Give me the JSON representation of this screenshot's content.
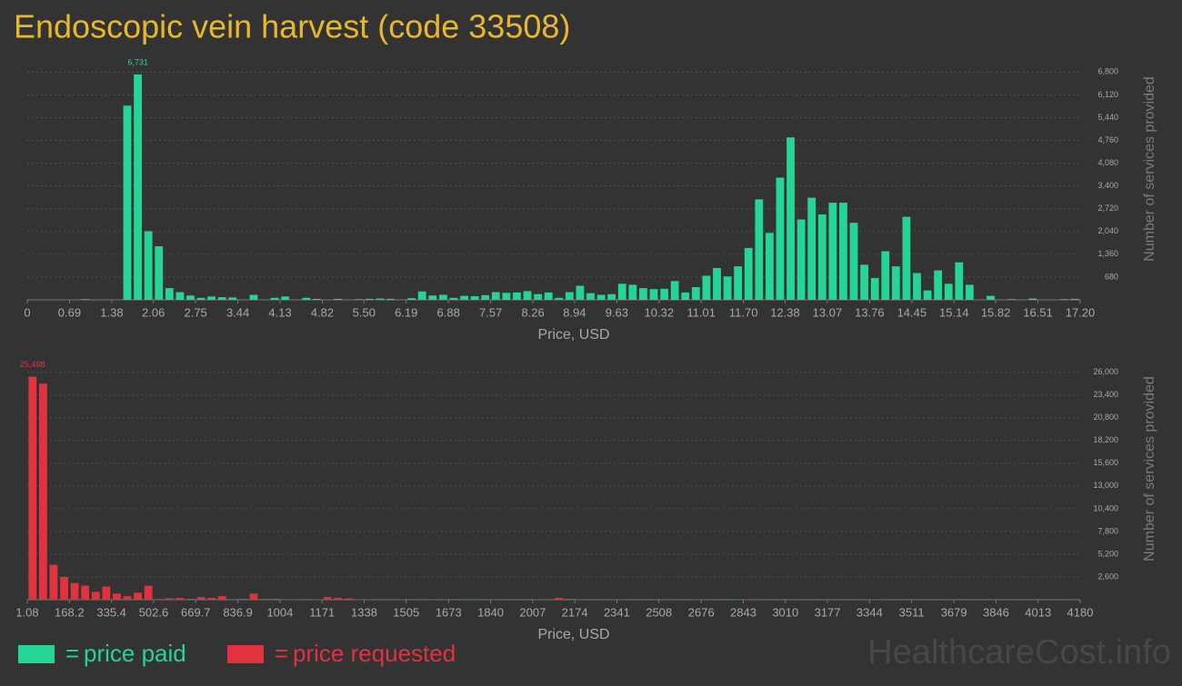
{
  "title": "Endoscopic vein harvest (code 33508)",
  "watermark": "HealthcareCost.info",
  "chart_data": [
    {
      "type": "histogram",
      "name": "price paid",
      "color": "#24d596",
      "xlabel": "Price, USD",
      "ylabel": "Number of services provided",
      "grid": true,
      "bins": [
        0,
        0.172,
        0.344,
        0.516,
        0.688,
        0.86,
        1.032,
        1.204,
        1.376,
        1.548,
        1.72,
        1.892,
        2.064,
        2.236,
        2.408,
        2.58,
        2.752,
        2.924,
        3.096,
        3.268,
        3.44,
        3.612,
        3.784,
        3.956,
        4.128,
        4.3,
        4.472,
        4.644,
        4.816,
        4.988,
        5.16,
        5.332,
        5.504,
        5.676,
        5.848,
        6.02,
        6.192,
        6.364,
        6.536,
        6.708,
        6.88,
        7.052,
        7.224,
        7.396,
        7.568,
        7.74,
        7.912,
        8.084,
        8.256,
        8.428,
        8.6,
        8.772,
        8.944,
        9.116,
        9.288,
        9.46,
        9.632,
        9.804,
        9.976,
        10.148,
        10.32,
        10.492,
        10.664,
        10.836,
        11.008,
        11.18,
        11.352,
        11.524,
        11.696,
        11.868,
        12.04,
        12.212,
        12.384,
        12.556,
        12.728,
        12.9,
        13.072,
        13.244,
        13.416,
        13.588,
        13.76,
        13.932,
        14.104,
        14.276,
        14.448,
        14.62,
        14.792,
        14.964,
        15.136,
        15.308,
        15.48,
        15.652,
        15.824,
        15.996,
        16.168,
        16.34,
        16.512,
        16.684,
        16.856,
        17.028,
        17.2
      ],
      "values": [
        0,
        0,
        0,
        0,
        0,
        20,
        0,
        0,
        0,
        5800,
        6731,
        2050,
        1600,
        350,
        230,
        130,
        60,
        100,
        80,
        70,
        0,
        150,
        0,
        60,
        100,
        0,
        60,
        30,
        0,
        30,
        0,
        20,
        30,
        40,
        30,
        0,
        50,
        250,
        130,
        150,
        60,
        120,
        110,
        140,
        230,
        210,
        220,
        260,
        170,
        220,
        60,
        230,
        420,
        200,
        150,
        170,
        480,
        450,
        350,
        320,
        330,
        560,
        220,
        380,
        720,
        950,
        700,
        1000,
        1550,
        3000,
        2000,
        3650,
        4850,
        2400,
        3050,
        2550,
        2900,
        2900,
        2300,
        1050,
        650,
        1450,
        1000,
        2480,
        800,
        280,
        880,
        480,
        1120,
        450,
        0,
        120,
        0,
        20,
        0,
        40,
        0,
        0,
        20,
        30
      ],
      "value_labels": [
        null,
        null,
        null,
        null,
        null,
        null,
        null,
        null,
        null,
        null,
        "6,731",
        null,
        null,
        null,
        null,
        null,
        null,
        null,
        null,
        null,
        null,
        null,
        null,
        null,
        null,
        null,
        null,
        null,
        null,
        null,
        null,
        null,
        null,
        null,
        null,
        null,
        null,
        null,
        null,
        null,
        null,
        null,
        null,
        null,
        null,
        null,
        null,
        null,
        null,
        null,
        null,
        null,
        null,
        null,
        null,
        null,
        null,
        null,
        null,
        null,
        null,
        null,
        null,
        null,
        null,
        null,
        null,
        null,
        null,
        null,
        null,
        null,
        null,
        null,
        null,
        null,
        null,
        null,
        null,
        null,
        null,
        null,
        null,
        null,
        null,
        null,
        null,
        null,
        null,
        null,
        null,
        null,
        null,
        null,
        null,
        null,
        null,
        null,
        null,
        null
      ],
      "xlim": [
        0,
        17.2
      ],
      "xticks": [
        0,
        0.69,
        1.38,
        2.06,
        2.75,
        3.44,
        4.13,
        4.82,
        {
          "value": 5.5,
          "label": "5.50"
        },
        6.19,
        6.88,
        7.57,
        8.26,
        8.94,
        9.63,
        10.32,
        11.01,
        {
          "value": 11.7,
          "label": "11.70"
        },
        12.38,
        13.07,
        13.76,
        14.45,
        15.14,
        15.82,
        16.51,
        {
          "value": 17.2,
          "label": "17.20"
        }
      ],
      "ylim": [
        0,
        7000
      ],
      "yticks": [
        680,
        {
          "value": 1360,
          "label": "1,360"
        },
        {
          "value": 2040,
          "label": "2,040"
        },
        {
          "value": 2720,
          "label": "2,720"
        },
        {
          "value": 3400,
          "label": "3,400"
        },
        {
          "value": 4080,
          "label": "4,080"
        },
        {
          "value": 4760,
          "label": "4,760"
        },
        {
          "value": 5440,
          "label": "5,440"
        },
        {
          "value": 6120,
          "label": "6,120"
        },
        {
          "value": 6800,
          "label": "6,800"
        }
      ]
    },
    {
      "type": "histogram",
      "name": "price requested",
      "color": "#e3323f",
      "xlabel": "Price, USD",
      "ylabel": "Number of services provided",
      "grid": true,
      "bins": [
        1.08,
        42.87,
        84.66,
        126.45,
        168.24,
        210.03,
        251.82,
        293.6,
        335.39,
        377.18,
        418.97,
        460.76,
        502.55,
        544.34,
        586.13,
        627.92,
        669.71,
        711.5,
        753.29,
        795.07,
        836.86,
        878.65,
        920.44,
        962.23,
        1004.02,
        1045.81,
        1087.6,
        1129.39,
        1171.18,
        1212.97,
        1254.76,
        1296.55,
        1338.33,
        1380.12,
        1421.91,
        1463.7,
        1505.49,
        1547.28,
        1589.07,
        1630.86,
        1672.65,
        1714.44,
        1756.23,
        1798.02,
        1839.8,
        1881.59,
        1923.38,
        1965.17,
        2006.96,
        2048.75,
        2090.54,
        2132.33,
        2174.12,
        2215.91,
        2257.7,
        2299.49,
        2341.28,
        2383.06,
        2424.85,
        2466.64,
        2508.43,
        2550.22,
        2592.01,
        2633.8,
        2675.59,
        2717.38,
        2759.17,
        2800.96,
        2842.75,
        2884.53,
        2926.32,
        2968.11,
        3009.9,
        3051.69,
        3093.48,
        3135.27,
        3177.06,
        3218.85,
        3260.64,
        3302.43,
        3344.22,
        3386.01,
        3427.79,
        3469.58,
        3511.37,
        3553.16,
        3594.95,
        3636.74,
        3678.53,
        3720.32,
        3762.11,
        3803.9,
        3845.69,
        3887.48,
        3929.26,
        3971.05,
        4012.84,
        4054.63,
        4096.42,
        4138.21,
        4180
      ],
      "values": [
        25498,
        24700,
        4000,
        2600,
        1900,
        1600,
        900,
        1500,
        700,
        400,
        800,
        1600,
        0,
        150,
        200,
        100,
        300,
        200,
        400,
        0,
        100,
        700,
        100,
        100,
        50,
        50,
        30,
        50,
        300,
        200,
        150,
        50,
        30,
        30,
        30,
        30,
        30,
        20,
        30,
        20,
        30,
        20,
        20,
        0,
        20,
        0,
        0,
        0,
        40,
        20,
        200,
        100,
        20,
        0,
        0,
        20,
        50,
        0,
        0,
        0,
        20,
        20,
        0,
        50,
        0,
        0,
        0,
        30,
        50,
        20,
        0,
        0,
        20,
        0,
        0,
        0,
        60,
        0,
        0,
        30,
        40,
        20,
        0,
        0,
        0,
        0,
        0,
        20,
        0,
        0,
        0,
        0,
        0,
        0,
        0,
        0,
        0,
        0,
        0,
        20
      ],
      "value_labels": [
        "25,498",
        null,
        null,
        null,
        null,
        null,
        null,
        null,
        null,
        null,
        null,
        null,
        null,
        null,
        null,
        null,
        null,
        null,
        null,
        null,
        null,
        null,
        null,
        null,
        null,
        null,
        null,
        null,
        null,
        null,
        null,
        null,
        null,
        null,
        null,
        null,
        null,
        null,
        null,
        null,
        null,
        null,
        null,
        null,
        null,
        null,
        null,
        null,
        null,
        null,
        null,
        null,
        null,
        null,
        null,
        null,
        null,
        null,
        null,
        null,
        null,
        null,
        null,
        null,
        null,
        null,
        null,
        null,
        null,
        null,
        null,
        null,
        null,
        null,
        null,
        null,
        null,
        null,
        null,
        null,
        null,
        null,
        null,
        null,
        null,
        null,
        null,
        null,
        null,
        null,
        null,
        null,
        null,
        null,
        null,
        null,
        null,
        null,
        null,
        null
      ],
      "xlim": [
        1.08,
        4180
      ],
      "xticks": [
        1.08,
        168.2,
        335.4,
        502.6,
        669.7,
        836.9,
        1004,
        1171,
        1338,
        1505,
        1673,
        1840,
        2007,
        2174,
        2341,
        2508,
        2676,
        2843,
        3010,
        3177,
        3344,
        3511,
        3679,
        3846,
        4013,
        4180
      ],
      "ylim": [
        0,
        26800
      ],
      "yticks": [
        {
          "value": 2600,
          "label": "2,600"
        },
        {
          "value": 5200,
          "label": "5,200"
        },
        {
          "value": 7800,
          "label": "7,800"
        },
        {
          "value": 10400,
          "label": "10,400"
        },
        {
          "value": 13000,
          "label": "13,000"
        },
        {
          "value": 15600,
          "label": "15,600"
        },
        {
          "value": 18200,
          "label": "18,200"
        },
        {
          "value": 20800,
          "label": "20,800"
        },
        {
          "value": 23400,
          "label": "23,400"
        },
        {
          "value": 26000,
          "label": "26,000"
        }
      ]
    }
  ]
}
